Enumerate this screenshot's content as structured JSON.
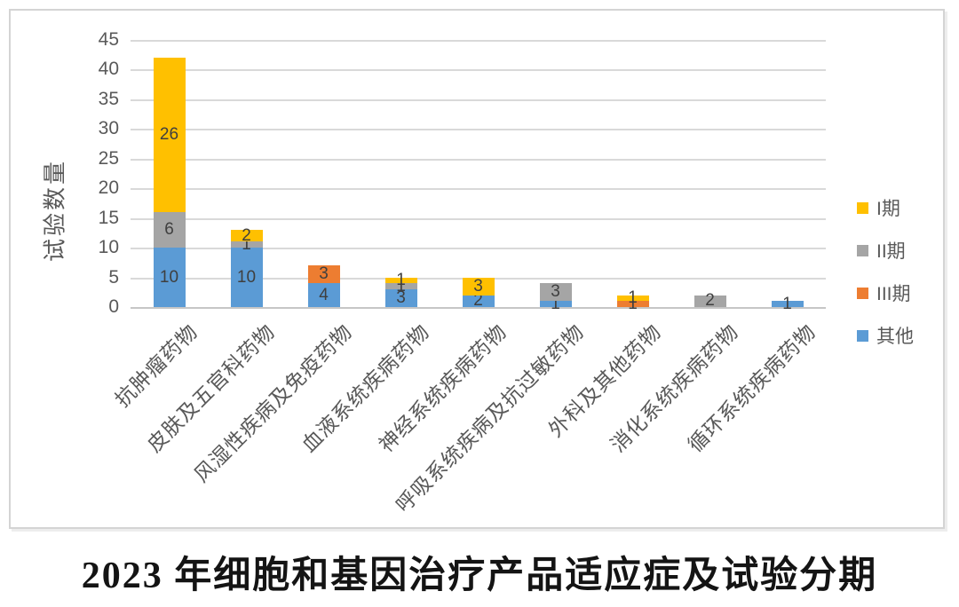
{
  "chart_data": {
    "type": "bar",
    "stacked": true,
    "categories": [
      "抗肿瘤药物",
      "皮肤及五官科药物",
      "风湿性疾病及免疫药物",
      "血液系统疾病药物",
      "神经系统疾病药物",
      "呼吸系统疾病及抗过敏药物",
      "外科及其他药物",
      "消化系统疾病药物",
      "循环系统疾病药物"
    ],
    "series": [
      {
        "name": "其他",
        "color": "#5B9BD5",
        "values": [
          10,
          10,
          4,
          3,
          2,
          1,
          0,
          0,
          1
        ]
      },
      {
        "name": "III期",
        "color": "#ED7D31",
        "values": [
          0,
          0,
          3,
          0,
          0,
          0,
          1,
          0,
          0
        ]
      },
      {
        "name": "II期",
        "color": "#A5A5A5",
        "values": [
          6,
          1,
          0,
          1,
          0,
          3,
          0,
          2,
          0
        ]
      },
      {
        "name": "I期",
        "color": "#FFC000",
        "values": [
          26,
          2,
          0,
          1,
          3,
          0,
          1,
          0,
          0
        ]
      }
    ],
    "totals": [
      42,
      13,
      7,
      5,
      5,
      4,
      2,
      2,
      1
    ],
    "legend_order": [
      3,
      2,
      1,
      0
    ],
    "legend_position": "right",
    "ylabel": "试验数量",
    "xlabel": "",
    "ylim": [
      0,
      45
    ],
    "yticks": [
      0,
      5,
      10,
      15,
      20,
      25,
      30,
      35,
      40,
      45
    ],
    "grid": true,
    "gridline_color": "#D9D9D9",
    "axis_text_color": "#595959"
  },
  "caption": {
    "text": "2023 年细胞和基因治疗产品适应症及试验分期"
  }
}
